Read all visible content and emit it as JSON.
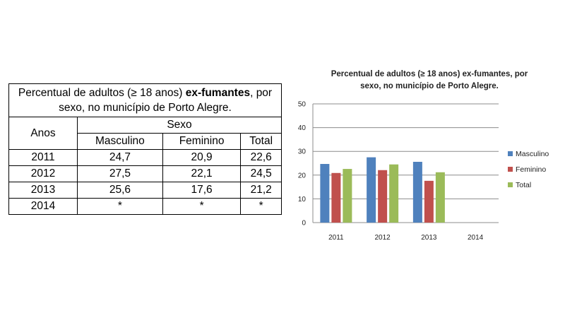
{
  "table": {
    "caption_part1": "Percentual de adultos (≥ 18 anos) ",
    "caption_bold": "ex-fumantes",
    "caption_part2": ", por sexo, no município de Porto Alegre.",
    "col_anos": "Anos",
    "col_sexo": "Sexo",
    "col_masculino": "Masculino",
    "col_feminino": "Feminino",
    "col_total": "Total",
    "rows": [
      {
        "ano": "2011",
        "masculino": "24,7",
        "feminino": "20,9",
        "total": "22,6"
      },
      {
        "ano": "2012",
        "masculino": "27,5",
        "feminino": "22,1",
        "total": "24,5"
      },
      {
        "ano": "2013",
        "masculino": "25,6",
        "feminino": "17,6",
        "total": "21,2"
      },
      {
        "ano": "2014",
        "masculino": "*",
        "feminino": "*",
        "total": "*"
      }
    ]
  },
  "chart_data": {
    "type": "bar",
    "title_line1": "Percentual de adultos (≥ 18  anos) ex-fumantes, por",
    "title_line2": "sexo, no município de Porto Alegre.",
    "categories": [
      "2011",
      "2012",
      "2013",
      "2014"
    ],
    "series": [
      {
        "name": "Masculino",
        "values": [
          24.7,
          27.5,
          25.6,
          null
        ],
        "color": "#4f81bd"
      },
      {
        "name": "Feminino",
        "values": [
          20.9,
          22.1,
          17.6,
          null
        ],
        "color": "#c0504d"
      },
      {
        "name": "Total",
        "values": [
          22.6,
          24.5,
          21.2,
          null
        ],
        "color": "#9bbb59"
      }
    ],
    "y_ticks": [
      "0",
      "10",
      "20",
      "30",
      "40",
      "50"
    ],
    "ylim": [
      0,
      50
    ],
    "grid": true,
    "legend": "right"
  }
}
